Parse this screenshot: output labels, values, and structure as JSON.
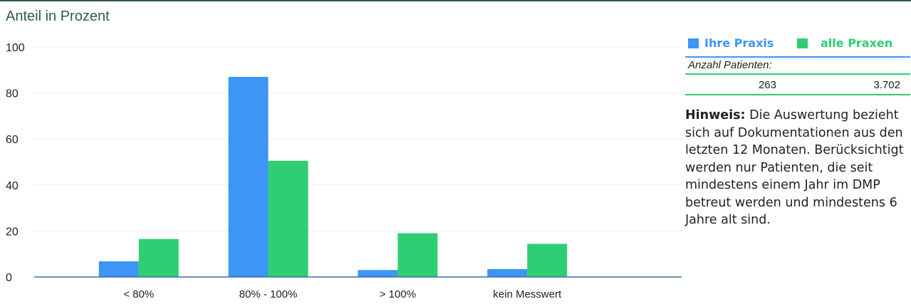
{
  "chart_title": "Anteil in Prozent",
  "colors": {
    "own": "#3d95f5",
    "all": "#2ecf72",
    "frame": "#2e5a5a",
    "axis": "#3a6ea5"
  },
  "legend": {
    "own_label": "Ihre Praxis",
    "all_label": "alle Praxen"
  },
  "patients": {
    "label": "Anzahl Patienten:",
    "own": "263",
    "all": "3.702"
  },
  "note": {
    "label": "Hinweis:",
    "text": "Die Auswertung bezieht sich auf Dokumentationen aus den letzten 12 Monaten. Berücksichtigt werden nur Patienten, die seit mindestens einem Jahr im DMP betreut werden und mindestens 6 Jahre alt sind."
  },
  "chart_data": {
    "type": "bar",
    "categories": [
      "< 80%",
      "80% - 100%",
      "> 100%",
      "kein Messwert"
    ],
    "series": [
      {
        "name": "Ihre Praxis",
        "values": [
          6.8,
          87.0,
          3.0,
          3.4
        ]
      },
      {
        "name": "alle Praxen",
        "values": [
          16.5,
          50.5,
          19.0,
          14.4
        ]
      }
    ],
    "ylabel": "Anteil in Prozent",
    "ylim": [
      0,
      100
    ],
    "yticks": [
      0,
      20,
      40,
      60,
      80,
      100
    ],
    "grid": true,
    "legend_position": "right"
  }
}
